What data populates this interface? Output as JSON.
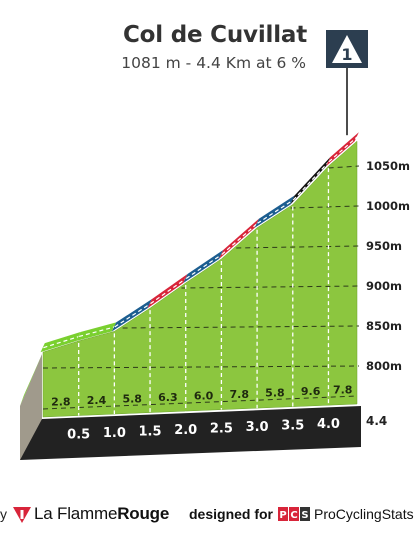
{
  "chart_data": {
    "type": "area",
    "title": "Col de Cuvillat",
    "subtitle": "1081 m - 4.4 Km at 6 %",
    "category_icon": "mountain-pass-category-1",
    "category_label": "1",
    "x_km": [
      0,
      0.5,
      1.0,
      1.5,
      2.0,
      2.5,
      3.0,
      3.5,
      4.0,
      4.4
    ],
    "x_tick_labels": [
      "0.5",
      "1.0",
      "1.5",
      "2.0",
      "2.5",
      "3.0",
      "3.5",
      "4.0"
    ],
    "end_distance_label": "4.4",
    "gradients_pct": [
      2.8,
      2.4,
      5.8,
      6.3,
      6.0,
      7.8,
      5.8,
      9.6,
      7.8
    ],
    "gradient_labels": [
      "2.8",
      "2.4",
      "5.8",
      "6.3",
      "6.0",
      "7.8",
      "5.8",
      "9.6",
      "7.8"
    ],
    "gradient_colors": [
      "#7ad02f",
      "#7ad02f",
      "#1c5e90",
      "#d8253a",
      "#1c5e90",
      "#d8253a",
      "#1c5e90",
      "#111111",
      "#d8253a"
    ],
    "y_tick_labels": [
      "800m",
      "850m",
      "900m",
      "950m",
      "1000m",
      "1050m"
    ],
    "y_tick_values": [
      800,
      850,
      900,
      950,
      1000,
      1050
    ],
    "ylim": [
      750,
      1090
    ],
    "summit_altitude_m": 1081
  },
  "footer": {
    "by_label": "y",
    "brand_prefix": "La Flamme",
    "brand_suffix": "Rouge",
    "designed_for_label": "designed for",
    "pcs_letters": [
      "P",
      "C",
      "S"
    ],
    "pcs_label": "ProCyclingStats"
  },
  "colors": {
    "face_green": "#8cc63f",
    "bedrock_dark": "#222222",
    "side_tan": "#a09a8c",
    "red": "#d8253a",
    "blue": "#1c5e90",
    "black": "#111111",
    "light_green": "#7ad02f"
  }
}
